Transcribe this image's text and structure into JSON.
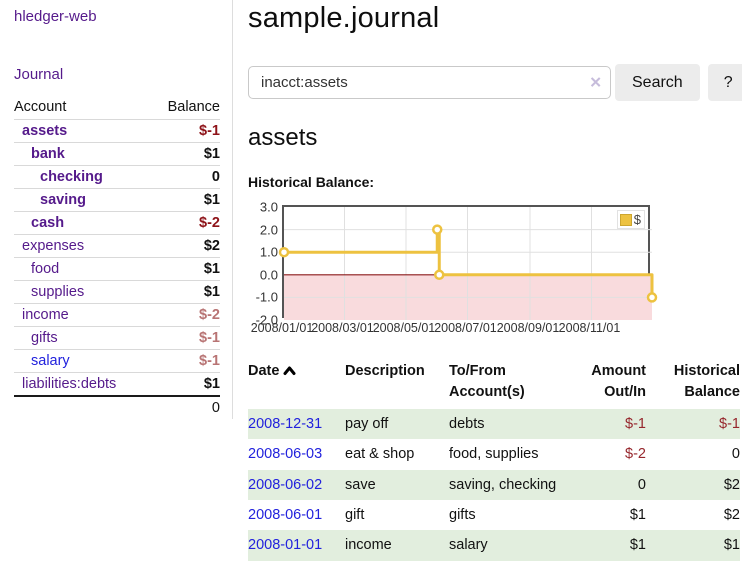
{
  "colors": {
    "link_purple": "#551a8b",
    "link_blue": "#2222dd",
    "negative_bold": "#8e1319",
    "negative_soft": "#b87474",
    "negative_register": "#96262c",
    "row_highlight_green": "#e2eede",
    "chart_line_yellow": "#edc240",
    "chart_zero_line": "#8b1a1a",
    "chart_negative_fill": "#f9dbdd",
    "button_gray": "#ececec"
  },
  "sidebar": {
    "brand": "hledger-web",
    "journal_link": "Journal",
    "table_headers": {
      "account": "Account",
      "balance": "Balance"
    },
    "accounts": [
      {
        "name": "assets",
        "balance": "$-1",
        "depth": 0,
        "bold": true,
        "balance_style": "neg"
      },
      {
        "name": "bank",
        "balance": "$1",
        "depth": 1,
        "bold": true,
        "balance_style": "pos"
      },
      {
        "name": "checking",
        "balance": "0",
        "depth": 2,
        "bold": true,
        "balance_style": "pos"
      },
      {
        "name": "saving",
        "balance": "$1",
        "depth": 2,
        "bold": true,
        "balance_style": "pos"
      },
      {
        "name": "cash",
        "balance": "$-2",
        "depth": 1,
        "bold": true,
        "balance_style": "neg"
      },
      {
        "name": "expenses",
        "balance": "$2",
        "depth": 0,
        "bold": false,
        "balance_style": "pos"
      },
      {
        "name": "food",
        "balance": "$1",
        "depth": 1,
        "bold": false,
        "balance_style": "pos"
      },
      {
        "name": "supplies",
        "balance": "$1",
        "depth": 1,
        "bold": false,
        "balance_style": "pos"
      },
      {
        "name": "income",
        "balance": "$-2",
        "depth": 0,
        "bold": false,
        "balance_style": "softneg"
      },
      {
        "name": "gifts",
        "balance": "$-1",
        "depth": 1,
        "bold": false,
        "balance_style": "softneg"
      },
      {
        "name": "salary",
        "balance": "$-1",
        "depth": 1,
        "bold": false,
        "balance_style": "softneg",
        "link_color": "blue"
      },
      {
        "name": "liabilities:debts",
        "balance": "$1",
        "depth": 0,
        "bold": false,
        "balance_style": "pos"
      }
    ],
    "total": "0"
  },
  "header": {
    "title": "sample.journal"
  },
  "search": {
    "value": "inacct:assets",
    "clear_icon": "✕",
    "search_button": "Search",
    "help_button": "?"
  },
  "account_page": {
    "title": "assets",
    "chart_label": "Historical Balance:"
  },
  "chart_data": {
    "type": "line",
    "title": "Historical Balance",
    "step": true,
    "legend": [
      {
        "label": "$",
        "color": "#edc240"
      }
    ],
    "legend_position": "top-right",
    "grid": true,
    "ylim": [
      -2.0,
      3.0
    ],
    "yticks": [
      "3.0",
      "2.0",
      "1.0",
      "0.0",
      "-1.0",
      "-2.0"
    ],
    "ytick_values": [
      3,
      2,
      1,
      0,
      -1,
      -2
    ],
    "xticks": [
      "2008/01/01",
      "2008/03/01",
      "2008/05/01",
      "2008/07/01",
      "2008/09/01",
      "2008/11/01"
    ],
    "xtick_dates": [
      "2008-01-01",
      "2008-03-01",
      "2008-05-01",
      "2008-07-01",
      "2008-09-01",
      "2008-11-01"
    ],
    "x_range": [
      "2008-01-01",
      "2008-12-31"
    ],
    "series": [
      {
        "name": "$",
        "color": "#edc240",
        "points": [
          {
            "date": "2008-01-01",
            "value": 1
          },
          {
            "date": "2008-06-01",
            "value": 2
          },
          {
            "date": "2008-06-03",
            "value": 0
          },
          {
            "date": "2008-12-31",
            "value": -1
          }
        ]
      }
    ]
  },
  "register": {
    "columns": [
      {
        "lines": [
          "Date"
        ],
        "align": "left",
        "sort": "asc"
      },
      {
        "lines": [
          "Description"
        ],
        "align": "left"
      },
      {
        "lines": [
          "To/From",
          "Account(s)"
        ],
        "align": "left"
      },
      {
        "lines": [
          "Amount",
          "Out/In"
        ],
        "align": "right"
      },
      {
        "lines": [
          "Historical",
          "Balance"
        ],
        "align": "right"
      }
    ],
    "rows": [
      {
        "date": "2008-12-31",
        "description": "pay off",
        "accounts": "debts",
        "amount": "$-1",
        "amount_negative": true,
        "balance": "$-1",
        "balance_negative": true,
        "highlight": true
      },
      {
        "date": "2008-06-03",
        "description": "eat & shop",
        "accounts": "food, supplies",
        "amount": "$-2",
        "amount_negative": true,
        "balance": "0",
        "balance_negative": false,
        "highlight": false
      },
      {
        "date": "2008-06-02",
        "description": "save",
        "accounts": "saving, checking",
        "amount": "0",
        "amount_negative": false,
        "balance": "$2",
        "balance_negative": false,
        "highlight": true
      },
      {
        "date": "2008-06-01",
        "description": "gift",
        "accounts": "gifts",
        "amount": "$1",
        "amount_negative": false,
        "balance": "$2",
        "balance_negative": false,
        "highlight": false
      },
      {
        "date": "2008-01-01",
        "description": "income",
        "accounts": "salary",
        "amount": "$1",
        "amount_negative": false,
        "balance": "$1",
        "balance_negative": false,
        "highlight": true
      }
    ]
  }
}
